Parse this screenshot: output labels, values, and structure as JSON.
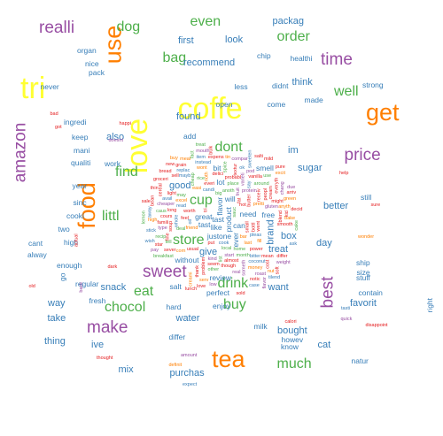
{
  "colors": {
    "yellow": "#ffff33",
    "orange": "#ff7f00",
    "purple": "#984ea3",
    "green": "#4daf4a",
    "blue": "#377eb8",
    "red": "#e41a1c"
  },
  "words": [
    {
      "text": "coffe",
      "tier": 1
    },
    {
      "text": "love",
      "tier": 1
    },
    {
      "text": "tri",
      "tier": 1
    },
    {
      "text": "get",
      "tier": 2
    },
    {
      "text": "use",
      "tier": 2
    },
    {
      "text": "food",
      "tier": 2
    },
    {
      "text": "tea",
      "tier": 2
    },
    {
      "text": "amazon",
      "tier": 3
    },
    {
      "text": "make",
      "tier": 3
    },
    {
      "text": "realli",
      "tier": 3
    },
    {
      "text": "time",
      "tier": 3
    },
    {
      "text": "price",
      "tier": 3
    },
    {
      "text": "best",
      "tier": 3
    },
    {
      "text": "sweet",
      "tier": 3
    },
    {
      "text": "dog",
      "tier": 4
    },
    {
      "text": "buy",
      "tier": 4
    },
    {
      "text": "eat",
      "tier": 4
    },
    {
      "text": "much",
      "tier": 4
    },
    {
      "text": "order",
      "tier": 4
    },
    {
      "text": "dont",
      "tier": 4
    },
    {
      "text": "cup",
      "tier": 4
    },
    {
      "text": "littl",
      "tier": 4
    },
    {
      "text": "well",
      "tier": 4
    },
    {
      "text": "drink",
      "tier": 4
    },
    {
      "text": "find",
      "tier": 4
    },
    {
      "text": "even",
      "tier": 4
    },
    {
      "text": "bag",
      "tier": 4
    },
    {
      "text": "store",
      "tier": 4
    },
    {
      "text": "chocol",
      "tier": 4
    },
    {
      "text": "im",
      "tier": 5
    },
    {
      "text": "give",
      "tier": 5
    },
    {
      "text": "box",
      "tier": 5
    },
    {
      "text": "day",
      "tier": 5
    },
    {
      "text": "sugar",
      "tier": 5
    },
    {
      "text": "better",
      "tier": 5
    },
    {
      "text": "good",
      "tier": 5
    },
    {
      "text": "found",
      "tier": 5
    },
    {
      "text": "first",
      "tier": 5
    },
    {
      "text": "look",
      "tier": 5
    },
    {
      "text": "recommend",
      "tier": 5
    },
    {
      "text": "packag",
      "tier": 5
    },
    {
      "text": "think",
      "tier": 5
    },
    {
      "text": "want",
      "tier": 5
    },
    {
      "text": "treat",
      "tier": 5
    },
    {
      "text": "water",
      "tier": 5
    },
    {
      "text": "brand",
      "tier": 5
    },
    {
      "text": "cat",
      "tier": 5
    },
    {
      "text": "mix",
      "tier": 5
    },
    {
      "text": "ive",
      "tier": 5
    },
    {
      "text": "way",
      "tier": 5
    },
    {
      "text": "take",
      "tier": 5
    },
    {
      "text": "thing",
      "tier": 5
    },
    {
      "text": "also",
      "tier": 5
    },
    {
      "text": "favorit",
      "tier": 5
    },
    {
      "text": "bought",
      "tier": 5
    },
    {
      "text": "purchas",
      "tier": 5
    },
    {
      "text": "snack",
      "tier": 5
    },
    {
      "text": "go",
      "tier": 6
    },
    {
      "text": "enjoy",
      "tier": 6
    },
    {
      "text": "review",
      "tier": 6
    },
    {
      "text": "differ",
      "tier": 6
    },
    {
      "text": "made",
      "tier": 6
    },
    {
      "text": "need",
      "tier": 6
    },
    {
      "text": "free",
      "tier": 6
    },
    {
      "text": "two",
      "tier": 6
    },
    {
      "text": "high",
      "tier": 6
    },
    {
      "text": "sinc",
      "tier": 6
    },
    {
      "text": "work",
      "tier": 6
    },
    {
      "text": "know",
      "tier": 6
    },
    {
      "text": "chip",
      "tier": 6
    },
    {
      "text": "keep",
      "tier": 6
    },
    {
      "text": "size",
      "tier": 6
    },
    {
      "text": "still",
      "tier": 6
    },
    {
      "text": "stuff",
      "tier": 6
    },
    {
      "text": "add",
      "tier": 6
    },
    {
      "text": "ingredi",
      "tier": 6
    },
    {
      "text": "nice",
      "tier": 6
    },
    {
      "text": "pack",
      "tier": 6
    },
    {
      "text": "cooki",
      "tier": 6
    },
    {
      "text": "year",
      "tier": 6
    },
    {
      "text": "cant",
      "tier": 6
    },
    {
      "text": "alway",
      "tier": 6
    },
    {
      "text": "come",
      "tier": 6
    },
    {
      "text": "less",
      "tier": 6
    },
    {
      "text": "smell",
      "tier": 6
    },
    {
      "text": "bit",
      "tier": 6
    },
    {
      "text": "lot",
      "tier": 6
    },
    {
      "text": "tast",
      "tier": 6
    },
    {
      "text": "product",
      "tier": 6
    },
    {
      "text": "organ",
      "tier": 6
    },
    {
      "text": "never",
      "tier": 6
    },
    {
      "text": "like",
      "tier": 6
    },
    {
      "text": "flavor",
      "tier": 6
    },
    {
      "text": "one",
      "tier": 6
    },
    {
      "text": "great",
      "tier": 6
    },
    {
      "text": "just",
      "tier": 6
    },
    {
      "text": "can",
      "tier": 6
    },
    {
      "text": "will",
      "tier": 6
    },
    {
      "text": "tast",
      "tier": 6
    },
    {
      "text": "milk",
      "tier": 6
    },
    {
      "text": "salt",
      "tier": 6
    },
    {
      "text": "fresh",
      "tier": 6
    },
    {
      "text": "hard",
      "tier": 6
    },
    {
      "text": "howev",
      "tier": 6
    },
    {
      "text": "natur",
      "tier": 6
    },
    {
      "text": "regular",
      "tier": 6
    },
    {
      "text": "ship",
      "tier": 6
    },
    {
      "text": "ever",
      "tier": 6
    },
    {
      "text": "strong",
      "tier": 6
    },
    {
      "text": "healthi",
      "tier": 6
    },
    {
      "text": "without",
      "tier": 6
    },
    {
      "text": "perfect",
      "tier": 6
    },
    {
      "text": "enough",
      "tier": 6
    },
    {
      "text": "qualiti",
      "tier": 6
    },
    {
      "text": "right",
      "tier": 6
    },
    {
      "text": "contain",
      "tier": 6
    },
    {
      "text": "open",
      "tier": 6
    },
    {
      "text": "didnt",
      "tier": 6
    },
    {
      "text": "mani",
      "tier": 6
    },
    {
      "text": "help",
      "tier": 7
    },
    {
      "text": "sure",
      "tier": 7
    },
    {
      "text": "dark",
      "tier": 7
    },
    {
      "text": "back",
      "tier": 7
    },
    {
      "text": "green",
      "tier": 7
    },
    {
      "text": "cook",
      "tier": 7
    },
    {
      "text": "sauc",
      "tier": 7
    },
    {
      "text": "hot",
      "tier": 7
    },
    {
      "text": "put",
      "tier": 7
    },
    {
      "text": "happi",
      "tier": 7
    },
    {
      "text": "quick",
      "tier": 7
    },
    {
      "text": "wonder",
      "tier": 7
    },
    {
      "text": "tasti",
      "tier": 7
    },
    {
      "text": "local",
      "tier": 7
    },
    {
      "text": "calori",
      "tier": 7
    },
    {
      "text": "disappoint",
      "tier": 7
    },
    {
      "text": "small",
      "tier": 7
    },
    {
      "text": "amount",
      "tier": 7
    },
    {
      "text": "definit",
      "tier": 7
    },
    {
      "text": "expect",
      "tier": 7
    },
    {
      "text": "anoth",
      "tier": 7
    },
    {
      "text": "thought",
      "tier": 7
    },
    {
      "text": "bad",
      "tier": 7
    },
    {
      "text": "got",
      "tier": 7
    },
    {
      "text": "doesnt",
      "tier": 7
    },
    {
      "text": "bar",
      "tier": 7
    },
    {
      "text": "oil",
      "tier": 7
    },
    {
      "text": "big",
      "tier": 7
    },
    {
      "text": "actual",
      "tier": 7
    },
    {
      "text": "old",
      "tier": 7
    },
    {
      "text": "fat",
      "tier": 7
    },
    {
      "text": "fruit",
      "tier": 7
    },
    {
      "text": "friend",
      "tier": 7
    },
    {
      "text": "candi",
      "tier": 7
    },
    {
      "text": "home",
      "tier": 7
    },
    {
      "text": "butter",
      "tier": 7
    },
    {
      "text": "worth",
      "tier": 7
    },
    {
      "text": "bottl",
      "tier": 7
    },
    {
      "text": "start",
      "tier": 7
    },
    {
      "text": "last",
      "tier": 7
    },
    {
      "text": "pleas",
      "tier": 7
    },
    {
      "text": "place",
      "tier": 7
    },
    {
      "text": "feel",
      "tier": 7
    },
    {
      "text": "everi",
      "tier": 7
    },
    {
      "text": "almost",
      "tier": 7
    },
    {
      "text": "kind",
      "tier": 7
    },
    {
      "text": "pretti",
      "tier": 7
    },
    {
      "text": "read",
      "tier": 7
    },
    {
      "text": "month",
      "tier": 7
    },
    {
      "text": "power",
      "tier": 7
    },
    {
      "text": "seem",
      "tier": 7
    },
    {
      "text": "went",
      "tier": 7
    },
    {
      "text": "protein",
      "tier": 7
    },
    {
      "text": "easi",
      "tier": 7
    },
    {
      "text": "whole",
      "tier": 7
    },
    {
      "text": "deal",
      "tier": 7
    },
    {
      "text": "problem",
      "tier": 7
    },
    {
      "text": "probabl",
      "tier": 7
    },
    {
      "text": "though",
      "tier": 7
    },
    {
      "text": "varieti",
      "tier": 7
    },
    {
      "text": "excel",
      "tier": 7
    },
    {
      "text": "say",
      "tier": 7
    },
    {
      "text": "rice",
      "tier": 7
    },
    {
      "text": "delici",
      "tier": 7
    },
    {
      "text": "soup",
      "tier": 7
    },
    {
      "text": "receiv",
      "tier": 7
    },
    {
      "text": "someth",
      "tier": 7
    },
    {
      "text": "fill",
      "tier": 7
    },
    {
      "text": "bitter",
      "tier": 7
    },
    {
      "text": "may",
      "tier": 7
    },
    {
      "text": "long",
      "tier": 7
    },
    {
      "text": "textur",
      "tier": 7
    },
    {
      "text": "tri",
      "tier": 7
    },
    {
      "text": "gluten",
      "tier": 7
    },
    {
      "text": "noth",
      "tier": 7
    },
    {
      "text": "coconut",
      "tier": 7
    },
    {
      "text": "around",
      "tier": 7
    },
    {
      "text": "vanilla",
      "tier": 7
    },
    {
      "text": "peopl",
      "tier": 7
    },
    {
      "text": "usual",
      "tier": 7
    },
    {
      "text": "cheaper",
      "tier": 7
    },
    {
      "text": "wont",
      "tier": 7
    },
    {
      "text": "mayb",
      "tier": 7
    },
    {
      "text": "spice",
      "tier": 7
    },
    {
      "text": "fine",
      "tier": 7
    },
    {
      "text": "cream",
      "tier": 7
    },
    {
      "text": "thank",
      "tier": 7
    },
    {
      "text": "real",
      "tier": 7
    },
    {
      "text": "corn",
      "tier": 7
    },
    {
      "text": "ok",
      "tier": 7
    },
    {
      "text": "list",
      "tier": 7
    },
    {
      "text": "might",
      "tier": 7
    },
    {
      "text": "cours",
      "tier": 7
    },
    {
      "text": "light",
      "tier": 7
    },
    {
      "text": "type",
      "tier": 7
    },
    {
      "text": "money",
      "tier": 7
    },
    {
      "text": "instead",
      "tier": 7
    },
    {
      "text": "tell",
      "tier": 7
    },
    {
      "text": "smooth",
      "tier": 7
    },
    {
      "text": "sever",
      "tier": 7
    },
    {
      "text": "expens",
      "tier": 7
    },
    {
      "text": "compar",
      "tier": 7
    },
    {
      "text": "serv",
      "tier": 7
    },
    {
      "text": "avail",
      "tier": 7
    },
    {
      "text": "recip",
      "tier": 7
    },
    {
      "text": "blend",
      "tier": 7
    },
    {
      "text": "mean",
      "tier": 7
    },
    {
      "text": "famili",
      "tier": 7
    },
    {
      "text": "pod",
      "tier": 7
    },
    {
      "text": "creami",
      "tier": 7
    },
    {
      "text": "replac",
      "tier": 7
    },
    {
      "text": "caus",
      "tier": 7
    },
    {
      "text": "everyth",
      "tier": 7
    },
    {
      "text": "cost",
      "tier": 7
    },
    {
      "text": "kid",
      "tier": 7
    },
    {
      "text": "roast",
      "tier": 7
    },
    {
      "text": "anyth",
      "tier": 7
    },
    {
      "text": "item",
      "tier": 7
    },
    {
      "text": "use",
      "tier": 7
    },
    {
      "text": "grain",
      "tier": 7
    },
    {
      "text": "cereal",
      "tier": 7
    },
    {
      "text": "star",
      "tier": 7
    },
    {
      "text": "mouth",
      "tier": 7
    },
    {
      "text": "bake",
      "tier": 7
    },
    {
      "text": "sweeten",
      "tier": 7
    },
    {
      "text": "breakfast",
      "tier": 7
    },
    {
      "text": "sell",
      "tier": 7
    },
    {
      "text": "differ",
      "tier": 7
    },
    {
      "text": "notic",
      "tier": 7
    },
    {
      "text": "chang",
      "tier": 7
    },
    {
      "text": "high",
      "tier": 7
    },
    {
      "text": "stick",
      "tier": 7
    },
    {
      "text": "other",
      "tier": 7
    },
    {
      "text": "love",
      "tier": 7
    },
    {
      "text": "bean",
      "tier": 7
    },
    {
      "text": "groceri",
      "tier": 7
    },
    {
      "text": "weight",
      "tier": 7
    },
    {
      "text": "meal",
      "tier": 7
    },
    {
      "text": "away",
      "tier": 7
    },
    {
      "text": "cheap",
      "tier": 7
    },
    {
      "text": "bread",
      "tier": 7
    },
    {
      "text": "salti",
      "tier": 7
    },
    {
      "text": "decid",
      "tier": 7
    },
    {
      "text": "pay",
      "tier": 7
    },
    {
      "text": "nut",
      "tier": 7
    },
    {
      "text": "case",
      "tier": 7
    },
    {
      "text": "fact",
      "tier": 7
    },
    {
      "text": "lunch",
      "tier": 7
    },
    {
      "text": "sold",
      "tier": 7
    },
    {
      "text": "arriv",
      "tier": 7
    },
    {
      "text": "flavor",
      "tier": 7
    },
    {
      "text": "excit",
      "tier": 7
    },
    {
      "text": "wish",
      "tier": 7
    },
    {
      "text": "treat",
      "tier": 7
    },
    {
      "text": "bulk",
      "tier": 7
    },
    {
      "text": "thin",
      "tier": 7
    },
    {
      "text": "new",
      "tier": 7
    },
    {
      "text": "low",
      "tier": 7
    },
    {
      "text": "tin",
      "tier": 7
    },
    {
      "text": "ask",
      "tier": 7
    },
    {
      "text": "lemon",
      "tier": 7
    },
    {
      "text": "soft",
      "tier": 7
    },
    {
      "text": "mild",
      "tier": 7
    },
    {
      "text": "pure",
      "tier": 7
    },
    {
      "text": "due",
      "tier": 7
    },
    {
      "text": "buy",
      "tier": 7
    },
    {
      "text": "tilend",
      "tier": 7
    },
    {
      "text": "cake",
      "tier": 7
    },
    {
      "text": "sale",
      "tier": 7
    }
  ]
}
